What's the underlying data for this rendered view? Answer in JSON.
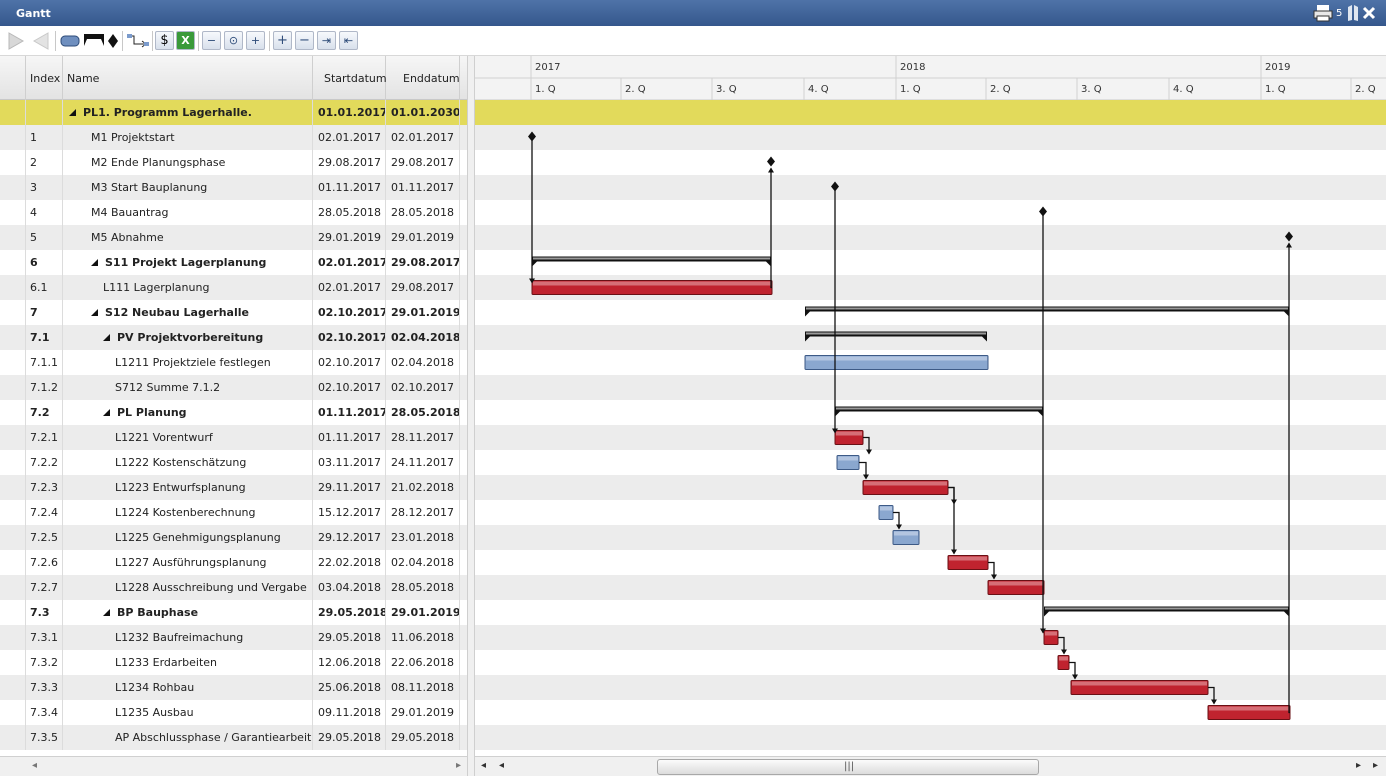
{
  "window": {
    "title": "Gantt",
    "badge": "5"
  },
  "icons": [
    "play-icon",
    "back-icon",
    "bar-shape-icon",
    "summary-shape-icon",
    "milestone-shape-icon",
    "link-icon",
    "currency-icon",
    "excel-icon",
    "zoom-out-icon",
    "zoom-fit-icon",
    "zoom-in-icon",
    "add-icon",
    "remove-icon",
    "indent-icon",
    "outdent-icon",
    "print-icon",
    "columns-icon",
    "close-icon"
  ],
  "columns": {
    "index": "Index",
    "name": "Name",
    "start": "Startdatum",
    "end": "Enddatum"
  },
  "timeline": {
    "years": [
      "2017",
      "2018",
      "2019"
    ],
    "quarters": [
      "1. Q",
      "2. Q",
      "3. Q",
      "4. Q",
      "1. Q",
      "2. Q",
      "3. Q",
      "4. Q",
      "1. Q",
      "2. Q"
    ]
  },
  "colors": {
    "critical": "#c0232f",
    "normal": "#8aa7cf",
    "program_row": "#e2da5b"
  },
  "rows": [
    {
      "index": "",
      "name": "PL1. Programm Lagerhalle.",
      "start": "01.01.2017",
      "end": "01.01.2030",
      "level": 0,
      "bold": true,
      "summary": true,
      "type": "program"
    },
    {
      "index": "1",
      "name": "M1 Projektstart",
      "start": "02.01.2017",
      "end": "02.01.2017",
      "level": 1,
      "type": "milestone",
      "s": "2017-01-02"
    },
    {
      "index": "2",
      "name": "M2 Ende Planungsphase",
      "start": "29.08.2017",
      "end": "29.08.2017",
      "level": 1,
      "type": "milestone",
      "s": "2017-08-29"
    },
    {
      "index": "3",
      "name": "M3 Start Bauplanung",
      "start": "01.11.2017",
      "end": "01.11.2017",
      "level": 1,
      "type": "milestone",
      "s": "2017-11-01"
    },
    {
      "index": "4",
      "name": "M4 Bauantrag",
      "start": "28.05.2018",
      "end": "28.05.2018",
      "level": 1,
      "type": "milestone",
      "s": "2018-05-28"
    },
    {
      "index": "5",
      "name": "M5 Abnahme",
      "start": "29.01.2019",
      "end": "29.01.2019",
      "level": 1,
      "type": "milestone",
      "s": "2019-01-29"
    },
    {
      "index": "6",
      "name": "S11 Projekt Lagerplanung",
      "start": "02.01.2017",
      "end": "29.08.2017",
      "level": 1,
      "bold": true,
      "summary": true,
      "type": "summary",
      "s": "2017-01-02",
      "e": "2017-08-29"
    },
    {
      "index": "6.1",
      "name": "L111 Lagerplanung",
      "start": "02.01.2017",
      "end": "29.08.2017",
      "level": 2,
      "type": "critical",
      "s": "2017-01-02",
      "e": "2017-08-29"
    },
    {
      "index": "7",
      "name": "S12 Neubau Lagerhalle",
      "start": "02.10.2017",
      "end": "29.01.2019",
      "level": 1,
      "bold": true,
      "summary": true,
      "type": "summary",
      "s": "2017-10-02",
      "e": "2019-01-29"
    },
    {
      "index": "7.1",
      "name": "PV Projektvorbereitung",
      "start": "02.10.2017",
      "end": "02.04.2018",
      "level": 2,
      "bold": true,
      "summary": true,
      "type": "summary",
      "s": "2017-10-02",
      "e": "2018-04-02"
    },
    {
      "index": "7.1.1",
      "name": "L1211 Projektziele festlegen",
      "start": "02.10.2017",
      "end": "02.04.2018",
      "level": 3,
      "type": "normal",
      "s": "2017-10-02",
      "e": "2018-04-02"
    },
    {
      "index": "7.1.2",
      "name": "S712 Summe 7.1.2",
      "start": "02.10.2017",
      "end": "02.10.2017",
      "level": 3,
      "type": "none"
    },
    {
      "index": "7.2",
      "name": "PL Planung",
      "start": "01.11.2017",
      "end": "28.05.2018",
      "level": 2,
      "bold": true,
      "summary": true,
      "type": "summary",
      "s": "2017-11-01",
      "e": "2018-05-28"
    },
    {
      "index": "7.2.1",
      "name": "L1221 Vorentwurf",
      "start": "01.11.2017",
      "end": "28.11.2017",
      "level": 3,
      "type": "critical",
      "s": "2017-11-01",
      "e": "2017-11-28"
    },
    {
      "index": "7.2.2",
      "name": "L1222 Kostenschätzung",
      "start": "03.11.2017",
      "end": "24.11.2017",
      "level": 3,
      "type": "normal",
      "s": "2017-11-03",
      "e": "2017-11-24"
    },
    {
      "index": "7.2.3",
      "name": "L1223 Entwurfsplanung",
      "start": "29.11.2017",
      "end": "21.02.2018",
      "level": 3,
      "type": "critical",
      "s": "2017-11-29",
      "e": "2018-02-21"
    },
    {
      "index": "7.2.4",
      "name": "L1224 Kostenberechnung",
      "start": "15.12.2017",
      "end": "28.12.2017",
      "level": 3,
      "type": "normal",
      "s": "2017-12-15",
      "e": "2017-12-28"
    },
    {
      "index": "7.2.5",
      "name": "L1225 Genehmigungsplanung",
      "start": "29.12.2017",
      "end": "23.01.2018",
      "level": 3,
      "type": "normal",
      "s": "2017-12-29",
      "e": "2018-01-23"
    },
    {
      "index": "7.2.6",
      "name": "L1227 Ausführungsplanung",
      "start": "22.02.2018",
      "end": "02.04.2018",
      "level": 3,
      "type": "critical",
      "s": "2018-02-22",
      "e": "2018-04-02"
    },
    {
      "index": "7.2.7",
      "name": "L1228 Ausschreibung und Vergabe",
      "start": "03.04.2018",
      "end": "28.05.2018",
      "level": 3,
      "type": "critical",
      "s": "2018-04-03",
      "e": "2018-05-28"
    },
    {
      "index": "7.3",
      "name": "BP Bauphase",
      "start": "29.05.2018",
      "end": "29.01.2019",
      "level": 2,
      "bold": true,
      "summary": true,
      "type": "summary",
      "s": "2018-05-29",
      "e": "2019-01-29"
    },
    {
      "index": "7.3.1",
      "name": "L1232 Baufreimachung",
      "start": "29.05.2018",
      "end": "11.06.2018",
      "level": 3,
      "type": "critical",
      "s": "2018-05-29",
      "e": "2018-06-11"
    },
    {
      "index": "7.3.2",
      "name": "L1233 Erdarbeiten",
      "start": "12.06.2018",
      "end": "22.06.2018",
      "level": 3,
      "type": "critical",
      "s": "2018-06-12",
      "e": "2018-06-22"
    },
    {
      "index": "7.3.3",
      "name": "L1234 Rohbau",
      "start": "25.06.2018",
      "end": "08.11.2018",
      "level": 3,
      "type": "critical",
      "s": "2018-06-25",
      "e": "2018-11-08"
    },
    {
      "index": "7.3.4",
      "name": "L1235 Ausbau",
      "start": "09.11.2018",
      "end": "29.01.2019",
      "level": 3,
      "type": "critical",
      "s": "2018-11-09",
      "e": "2019-01-29"
    },
    {
      "index": "7.3.5",
      "name": "AP Abschlussphase / Garantiearbeiten",
      "start": "29.05.2018",
      "end": "29.05.2018",
      "level": 3,
      "type": "none"
    }
  ],
  "links": [
    [
      1,
      7
    ],
    [
      7,
      2
    ],
    [
      3,
      13
    ],
    [
      13,
      14
    ],
    [
      14,
      15
    ],
    [
      15,
      16
    ],
    [
      16,
      17
    ],
    [
      15,
      18
    ],
    [
      18,
      19
    ],
    [
      4,
      21
    ],
    [
      21,
      22
    ],
    [
      22,
      23
    ],
    [
      23,
      24
    ],
    [
      24,
      5
    ]
  ]
}
